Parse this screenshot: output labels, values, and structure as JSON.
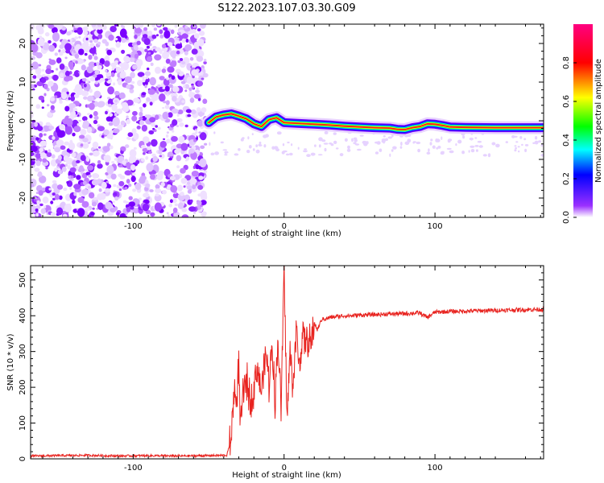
{
  "title": "S122.2023.107.03.30.G09",
  "chart_data": [
    {
      "type": "heatmap",
      "xlabel": "Height of straight line (km)",
      "ylabel": "Frequency (Hz)",
      "xlim": [
        -168,
        172
      ],
      "ylim": [
        -25,
        25
      ],
      "x_ticks": [
        -100,
        0,
        100
      ],
      "y_ticks": [
        -20,
        -10,
        0,
        10,
        20
      ],
      "noise_region_x": [
        -168,
        -52
      ],
      "ridge": {
        "x": [
          -50,
          -45,
          -40,
          -35,
          -30,
          -25,
          -20,
          -15,
          -10,
          -5,
          0,
          10,
          20,
          30,
          40,
          50,
          60,
          70,
          75,
          80,
          85,
          90,
          95,
          100,
          105,
          110,
          120,
          140,
          160,
          172
        ],
        "freq": [
          -0.5,
          1.0,
          1.5,
          1.8,
          1.2,
          0.5,
          -0.8,
          -1.5,
          0.3,
          0.8,
          -0.5,
          -0.7,
          -0.9,
          -1.1,
          -1.4,
          -1.6,
          -1.8,
          -1.9,
          -2.2,
          -2.3,
          -1.8,
          -1.5,
          -0.8,
          -0.9,
          -1.2,
          -1.6,
          -1.7,
          -1.8,
          -1.8,
          -1.8
        ]
      },
      "colorbar": {
        "label": "Normalized spectral amplitude",
        "ticks": [
          "0.0",
          "0.2",
          "0.4",
          "0.6",
          "0.8"
        ],
        "range": [
          0,
          1
        ],
        "colors": [
          "#ffffff",
          "#8000ff",
          "#0000ff",
          "#00ffff",
          "#00ff00",
          "#ffff00",
          "#ff0000",
          "#ff0080"
        ]
      }
    },
    {
      "type": "line",
      "xlabel": "Height of straight line (km)",
      "ylabel": "SNR (10 * v/v)",
      "xlim": [
        -168,
        172
      ],
      "ylim": [
        0,
        540
      ],
      "x_ticks": [
        -100,
        0,
        100
      ],
      "y_ticks": [
        0,
        100,
        200,
        300,
        400,
        500
      ],
      "color": "#e8231f",
      "series": [
        {
          "x": [
            -168,
            -150,
            -130,
            -110,
            -90,
            -70,
            -50,
            -38,
            -35,
            -33,
            -32,
            -30,
            -29,
            -27,
            -25,
            -22,
            -20,
            -18,
            -15,
            -12,
            -10,
            -8,
            -6,
            -4,
            -2,
            0,
            2,
            4,
            6,
            8,
            10,
            12,
            15,
            18,
            20,
            22,
            25,
            28,
            30,
            35,
            40,
            45,
            50,
            60,
            70,
            80,
            90,
            95,
            100,
            110,
            120,
            130,
            140,
            150,
            160,
            172
          ],
          "y": [
            8,
            9,
            10,
            8,
            9,
            8,
            9,
            10,
            55,
            210,
            140,
            260,
            85,
            180,
            220,
            160,
            200,
            260,
            190,
            300,
            210,
            330,
            160,
            340,
            140,
            520,
            110,
            300,
            200,
            360,
            260,
            340,
            330,
            320,
            380,
            360,
            390,
            392,
            395,
            398,
            400,
            400,
            402,
            403,
            405,
            406,
            408,
            395,
            410,
            412,
            413,
            414,
            415,
            416,
            417,
            418
          ]
        }
      ]
    }
  ]
}
